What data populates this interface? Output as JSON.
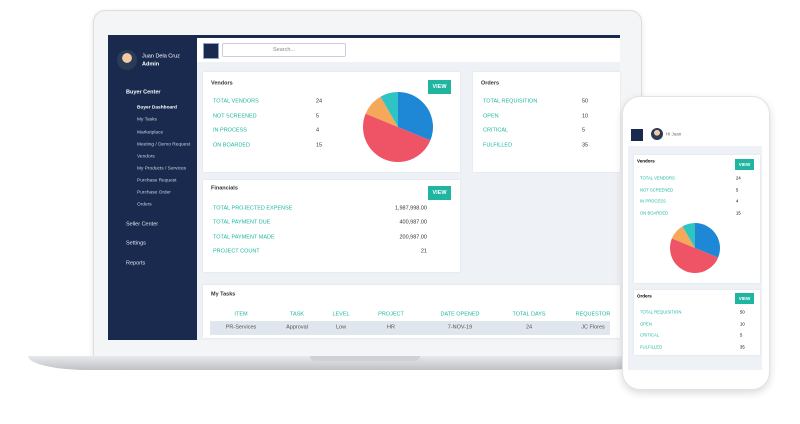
{
  "user": {
    "name": "Juan Dela Cruz",
    "role": "Admin",
    "greeting": "Hi Juan"
  },
  "search_placeholder": "Search...",
  "sidebar": {
    "main": "Buyer Center",
    "items": [
      "Buyer Dashboard",
      "My Tasks",
      "Marketplace",
      "Meeting / Demo Request",
      "Vendors",
      "My Products / Services",
      "Purchase Request",
      "Purchase Order",
      "Orders"
    ],
    "sections": [
      "Seller Center",
      "Settings",
      "Reports"
    ]
  },
  "button": "VIEW",
  "vendors": {
    "title": "Vendors",
    "rows": [
      {
        "label": "TOTAL VENDORS",
        "value": 24
      },
      {
        "label": "NOT SCREENED",
        "value": 5
      },
      {
        "label": "IN PROCESS",
        "value": 4
      },
      {
        "label": "ON BOARDED",
        "value": 15
      }
    ],
    "colors": [
      "#ef5466",
      "#f5a85a",
      "#2ec4c4",
      "#1e88d6"
    ]
  },
  "orders": {
    "title": "Orders",
    "rows": [
      {
        "label": "TOTAL REQUISITION",
        "value": 50
      },
      {
        "label": "OPEN",
        "value": 10
      },
      {
        "label": "CRITICAL",
        "value": 5
      },
      {
        "label": "FULFILLED",
        "value": 35
      }
    ]
  },
  "financials": {
    "title": "Financials",
    "rows": [
      {
        "label": "TOTAL PROJECTED EXPENSE",
        "value": "1,987,998.00"
      },
      {
        "label": "TOTAL PAYMENT DUE",
        "value": "400,987.00"
      },
      {
        "label": "TOTAL PAYMENT MADE",
        "value": "200,987.00"
      },
      {
        "label": "PROJECT COUNT",
        "value": "21"
      }
    ]
  },
  "tasks": {
    "title": "My Tasks",
    "columns": [
      "ITEM",
      "TASK",
      "LEVEL",
      "PROJECT",
      "DATE OPENED",
      "TOTAL DAYS",
      "REQUESTOR"
    ],
    "rows": [
      [
        "PR-Services",
        "Approval",
        "Low",
        "HR",
        "7-NOV-19",
        "24",
        "JC Flores"
      ]
    ]
  }
}
